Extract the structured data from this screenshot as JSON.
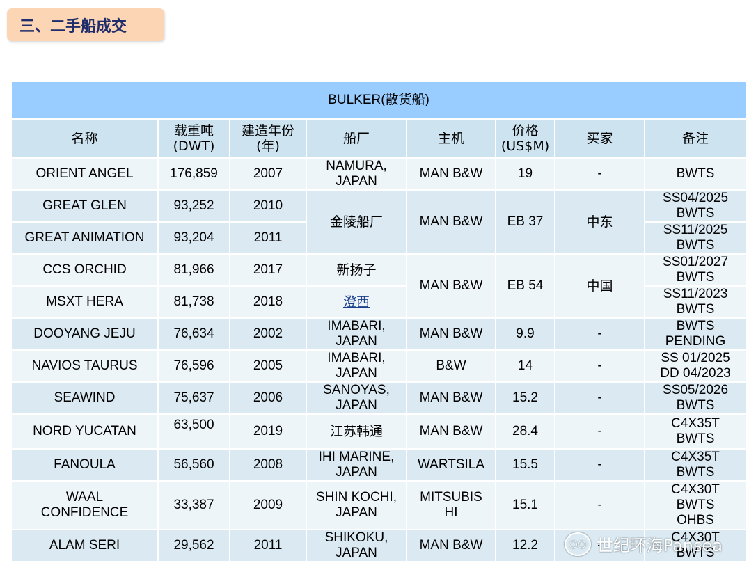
{
  "section": {
    "title": "三、二手船成交"
  },
  "table": {
    "title": "BULKER(散货船)",
    "headers": {
      "name": "名称",
      "dwt": [
        "载重吨",
        "(DWT)"
      ],
      "built": [
        "建造年份",
        "(年)"
      ],
      "yard": "船厂",
      "engine": "主机",
      "price": [
        "价格",
        "(US$M)"
      ],
      "buyer": "买家",
      "remarks": "备注"
    },
    "rows": [
      {
        "name": "ORIENT ANGEL",
        "dwt": "176,859",
        "built": "2007",
        "yard": [
          "NAMURA,",
          "JAPAN"
        ],
        "engine": [
          "MAN B&W"
        ],
        "price": "19",
        "buyer": "-",
        "remarks": [
          "BWTS"
        ]
      },
      {
        "name": "GREAT GLEN",
        "dwt": "93,252",
        "built": "2010",
        "yard": [
          "金陵船厂"
        ],
        "engine": [
          "MAN B&W"
        ],
        "price": "EB 37",
        "buyer": "中东",
        "remarks": [
          "SS04/2025",
          "BWTS"
        ]
      },
      {
        "name": "GREAT ANIMATION",
        "dwt": "93,204",
        "built": "2011",
        "remarks": [
          "SS11/2025",
          "BWTS"
        ]
      },
      {
        "name": "CCS ORCHID",
        "dwt": "81,966",
        "built": "2017",
        "yard": [
          "新扬子"
        ],
        "engine": [
          "MAN B&W"
        ],
        "price": "EB 54",
        "buyer": "中国",
        "remarks": [
          "SS01/2027",
          "BWTS"
        ]
      },
      {
        "name": "MSXT HERA",
        "dwt": "81,738",
        "built": "2018",
        "yard": [
          "澄西"
        ],
        "remarks": [
          "SS11/2023",
          "BWTS"
        ]
      },
      {
        "name": "DOOYANG JEJU",
        "dwt": "76,634",
        "built": "2002",
        "yard": [
          "IMABARI,",
          "JAPAN"
        ],
        "engine": [
          "MAN B&W"
        ],
        "price": "9.9",
        "buyer": "-",
        "remarks": [
          "BWTS",
          "PENDING"
        ]
      },
      {
        "name": "NAVIOS TAURUS",
        "dwt": "76,596",
        "built": "2005",
        "yard": [
          "IMABARI,",
          "JAPAN"
        ],
        "engine": [
          "B&W"
        ],
        "price": "14",
        "buyer": "-",
        "remarks": [
          "SS 01/2025",
          "DD 04/2023"
        ]
      },
      {
        "name": "SEAWIND",
        "dwt": "75,637",
        "built": "2006",
        "yard": [
          "SANOYAS,",
          "JAPAN"
        ],
        "engine": [
          "MAN B&W"
        ],
        "price": "15.2",
        "buyer": "-",
        "remarks": [
          "SS05/2026",
          "BWTS"
        ]
      },
      {
        "name": "NORD YUCATAN",
        "dwt": "63,500",
        "built": "2019",
        "yard": [
          "江苏韩通"
        ],
        "engine": [
          "MAN B&W"
        ],
        "price": "28.4",
        "buyer": "-",
        "remarks": [
          "C4X35T",
          "BWTS"
        ]
      },
      {
        "name": "FANOULA",
        "dwt": "56,560",
        "built": "2008",
        "yard": [
          "IHI MARINE,",
          "JAPAN"
        ],
        "engine": [
          "WARTSILA"
        ],
        "price": "15.5",
        "buyer": "-",
        "remarks": [
          "C4X35T",
          "BWTS"
        ]
      },
      {
        "name": [
          "WAAL",
          "CONFIDENCE"
        ],
        "dwt": "33,387",
        "built": "2009",
        "yard": [
          "SHIN KOCHI,",
          "JAPAN"
        ],
        "engine": [
          "MITSUBIS",
          "HI"
        ],
        "price": "15.1",
        "buyer": "-",
        "remarks": [
          "C4X30T",
          "BWTS",
          "OHBS"
        ]
      },
      {
        "name": "ALAM SERI",
        "dwt": "29,562",
        "built": "2011",
        "yard": [
          "SHIKOKU,",
          "JAPAN"
        ],
        "engine": [
          "MAN B&W"
        ],
        "price": "12.2",
        "buyer": "-",
        "remarks": [
          "C4X30T",
          "BWTS"
        ]
      }
    ]
  },
  "watermark": {
    "text": "世纪环海Pansea",
    "icon": "wechat-icon"
  }
}
